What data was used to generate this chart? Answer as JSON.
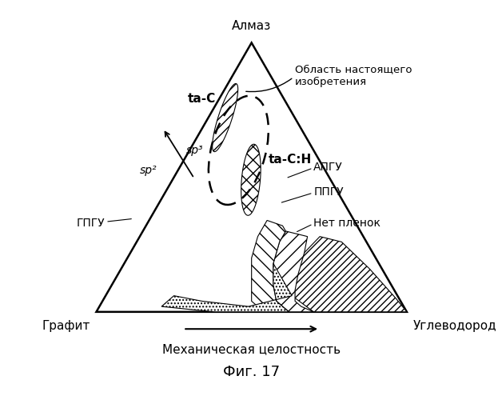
{
  "title": "Алмаз",
  "corner_bottom_left": "Графит",
  "corner_bottom_right": "Углеводород",
  "xlabel": "Механическая целостность",
  "fig_label": "Фиг. 17",
  "labels": {
    "ta_C": "ta-C",
    "ta_CH": "ta-C:H",
    "АПГУ": "АПГУ",
    "ППГУ": "ППГУ",
    "ГПГУ": "ГПГУ",
    "area": "Область настоящего\nизобретения",
    "no_film": "Нет пленок",
    "sp3": "sp³",
    "sp2": "sp²"
  },
  "background_color": "#ffffff",
  "line_color": "#000000"
}
